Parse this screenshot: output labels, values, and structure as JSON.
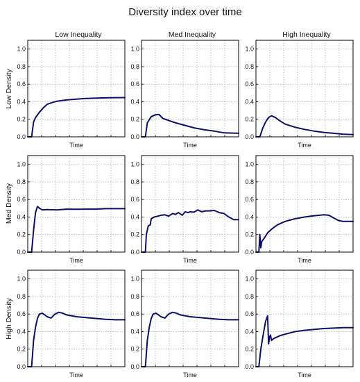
{
  "figure": {
    "title": "Diversity index over time",
    "col_titles": [
      "Low Inequality",
      "Med Inequality",
      "High Inequality"
    ],
    "row_titles": [
      "Low Density",
      "Med Density",
      "High Density"
    ],
    "line_color": "#0d0d6b"
  },
  "chart_data": [
    {
      "type": "line",
      "row": "Low Density",
      "col": "Low Inequality",
      "xlabel": "Time",
      "ylabel": "",
      "ylim": [
        0,
        1.1
      ],
      "yticks": [
        "0.0",
        "0.2",
        "0.4",
        "0.6",
        "0.8",
        "1.0"
      ],
      "grid": true,
      "series": [
        {
          "x": [
            0,
            0.04,
            0.06,
            0.08,
            0.12,
            0.16,
            0.2,
            0.25,
            0.3,
            0.4,
            0.5,
            0.6,
            0.7,
            0.8,
            0.9,
            1.0
          ],
          "y": [
            0,
            0,
            0.17,
            0.22,
            0.28,
            0.33,
            0.37,
            0.39,
            0.405,
            0.42,
            0.43,
            0.437,
            0.441,
            0.444,
            0.446,
            0.447
          ]
        }
      ]
    },
    {
      "type": "line",
      "row": "Low Density",
      "col": "Med Inequality",
      "xlabel": "Time",
      "ylabel": "",
      "ylim": [
        0,
        1.1
      ],
      "yticks": [
        "0.0",
        "0.2",
        "0.4",
        "0.6",
        "0.8",
        "1.0"
      ],
      "grid": true,
      "series": [
        {
          "x": [
            0,
            0.04,
            0.06,
            0.1,
            0.14,
            0.18,
            0.22,
            0.27,
            0.35,
            0.45,
            0.55,
            0.65,
            0.75,
            0.85,
            1.0
          ],
          "y": [
            0,
            0,
            0.16,
            0.23,
            0.25,
            0.255,
            0.21,
            0.19,
            0.16,
            0.13,
            0.1,
            0.08,
            0.065,
            0.045,
            0.04
          ]
        }
      ]
    },
    {
      "type": "line",
      "row": "Low Density",
      "col": "High Inequality",
      "xlabel": "Time",
      "ylabel": "",
      "ylim": [
        0,
        1.1
      ],
      "yticks": [
        "0.0",
        "0.2",
        "0.4",
        "0.6",
        "0.8",
        "1.0"
      ],
      "grid": true,
      "series": [
        {
          "x": [
            0,
            0.04,
            0.07,
            0.1,
            0.13,
            0.16,
            0.2,
            0.25,
            0.3,
            0.4,
            0.5,
            0.6,
            0.7,
            0.8,
            0.9,
            1.0
          ],
          "y": [
            0,
            0,
            0.1,
            0.17,
            0.22,
            0.24,
            0.22,
            0.18,
            0.145,
            0.11,
            0.085,
            0.065,
            0.05,
            0.04,
            0.03,
            0.025
          ]
        }
      ]
    },
    {
      "type": "line",
      "row": "Med Density",
      "col": "Low Inequality",
      "xlabel": "Time",
      "ylabel": "",
      "ylim": [
        0,
        1.1
      ],
      "yticks": [
        "0.0",
        "0.2",
        "0.4",
        "0.6",
        "0.8",
        "1.0"
      ],
      "grid": true,
      "series": [
        {
          "x": [
            0,
            0.04,
            0.06,
            0.08,
            0.1,
            0.12,
            0.15,
            0.2,
            0.3,
            0.4,
            0.5,
            0.6,
            0.7,
            0.8,
            0.9,
            1.0
          ],
          "y": [
            0,
            0,
            0.25,
            0.45,
            0.52,
            0.5,
            0.48,
            0.485,
            0.48,
            0.49,
            0.488,
            0.49,
            0.49,
            0.495,
            0.495,
            0.495
          ]
        }
      ]
    },
    {
      "type": "line",
      "row": "Med Density",
      "col": "Med Inequality",
      "xlabel": "Time",
      "ylabel": "",
      "ylim": [
        0,
        1.1
      ],
      "yticks": [
        "0.0",
        "0.2",
        "0.4",
        "0.6",
        "0.8",
        "1.0"
      ],
      "grid": true,
      "series": [
        {
          "x": [
            0,
            0.04,
            0.05,
            0.07,
            0.09,
            0.1,
            0.13,
            0.17,
            0.2,
            0.24,
            0.28,
            0.32,
            0.35,
            0.38,
            0.42,
            0.45,
            0.48,
            0.5,
            0.54,
            0.58,
            0.62,
            0.66,
            0.7,
            0.75,
            0.8,
            0.85,
            0.9,
            0.95,
            1.0
          ],
          "y": [
            0,
            0,
            0.2,
            0.3,
            0.31,
            0.38,
            0.4,
            0.41,
            0.42,
            0.425,
            0.41,
            0.44,
            0.43,
            0.45,
            0.42,
            0.46,
            0.45,
            0.46,
            0.455,
            0.48,
            0.46,
            0.47,
            0.47,
            0.475,
            0.45,
            0.44,
            0.4,
            0.37,
            0.37
          ]
        }
      ]
    },
    {
      "type": "line",
      "row": "Med Density",
      "col": "High Inequality",
      "xlabel": "Time",
      "ylabel": "",
      "ylim": [
        0,
        1.1
      ],
      "yticks": [
        "0.0",
        "0.2",
        "0.4",
        "0.6",
        "0.8",
        "1.0"
      ],
      "grid": true,
      "series": [
        {
          "x": [
            0,
            0.03,
            0.04,
            0.05,
            0.06,
            0.08,
            0.12,
            0.17,
            0.22,
            0.3,
            0.4,
            0.5,
            0.6,
            0.7,
            0.75,
            0.8,
            0.85,
            0.9,
            1.0
          ],
          "y": [
            0,
            0,
            0.2,
            0.05,
            0.12,
            0.15,
            0.22,
            0.27,
            0.31,
            0.35,
            0.38,
            0.4,
            0.415,
            0.425,
            0.42,
            0.39,
            0.36,
            0.35,
            0.35
          ]
        }
      ]
    },
    {
      "type": "line",
      "row": "High Density",
      "col": "Low Inequality",
      "xlabel": "Time",
      "ylabel": "",
      "ylim": [
        0,
        1.1
      ],
      "yticks": [
        "0.0",
        "0.2",
        "0.4",
        "0.6",
        "0.8",
        "1.0"
      ],
      "grid": true,
      "series": [
        {
          "x": [
            0,
            0.04,
            0.06,
            0.08,
            0.1,
            0.12,
            0.15,
            0.2,
            0.24,
            0.28,
            0.32,
            0.36,
            0.4,
            0.5,
            0.6,
            0.7,
            0.8,
            0.9,
            1.0
          ],
          "y": [
            0,
            0,
            0.3,
            0.45,
            0.55,
            0.6,
            0.61,
            0.57,
            0.555,
            0.6,
            0.62,
            0.61,
            0.59,
            0.57,
            0.56,
            0.55,
            0.54,
            0.535,
            0.535
          ]
        }
      ]
    },
    {
      "type": "line",
      "row": "High Density",
      "col": "Med Inequality",
      "xlabel": "Time",
      "ylabel": "",
      "ylim": [
        0,
        1.1
      ],
      "yticks": [
        "0.0",
        "0.2",
        "0.4",
        "0.6",
        "0.8",
        "1.0"
      ],
      "grid": true,
      "series": [
        {
          "x": [
            0,
            0.04,
            0.06,
            0.08,
            0.1,
            0.12,
            0.15,
            0.2,
            0.24,
            0.28,
            0.32,
            0.36,
            0.4,
            0.5,
            0.6,
            0.7,
            0.8,
            0.9,
            1.0
          ],
          "y": [
            0,
            0,
            0.3,
            0.45,
            0.55,
            0.6,
            0.61,
            0.57,
            0.555,
            0.6,
            0.62,
            0.61,
            0.59,
            0.57,
            0.56,
            0.55,
            0.54,
            0.535,
            0.535
          ]
        }
      ]
    },
    {
      "type": "line",
      "row": "High Density",
      "col": "High Inequality",
      "xlabel": "Time",
      "ylabel": "",
      "ylim": [
        0,
        1.1
      ],
      "yticks": [
        "0.0",
        "0.2",
        "0.4",
        "0.6",
        "0.8",
        "1.0"
      ],
      "grid": true,
      "series": [
        {
          "x": [
            0,
            0.03,
            0.05,
            0.08,
            0.1,
            0.12,
            0.13,
            0.14,
            0.15,
            0.16,
            0.18,
            0.2,
            0.25,
            0.3,
            0.4,
            0.5,
            0.6,
            0.7,
            0.8,
            0.9,
            1.0
          ],
          "y": [
            0,
            0,
            0.2,
            0.4,
            0.52,
            0.58,
            0.26,
            0.34,
            0.36,
            0.3,
            0.32,
            0.33,
            0.355,
            0.37,
            0.4,
            0.415,
            0.425,
            0.435,
            0.44,
            0.445,
            0.445
          ]
        }
      ]
    }
  ]
}
